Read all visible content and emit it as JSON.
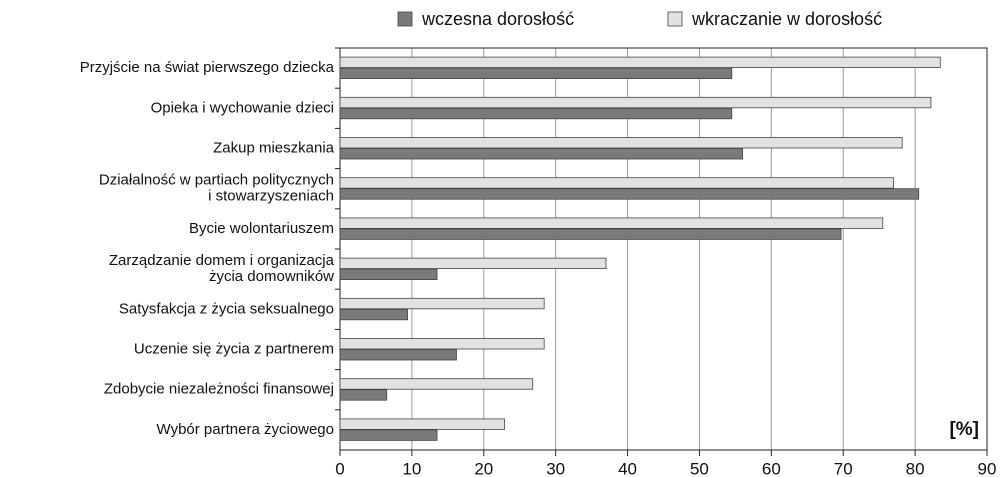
{
  "chart_data": {
    "type": "bar",
    "orientation": "horizontal",
    "categories": [
      [
        "Przyjście na świat pierwszego dziecka"
      ],
      [
        "Opieka i wychowanie dzieci"
      ],
      [
        "Zakup mieszkania"
      ],
      [
        "Działalność w partiach politycznych",
        "i stowarzyszeniach"
      ],
      [
        "Bycie wolontariuszem"
      ],
      [
        "Zarządzanie domem i organizacja",
        "życia domowników"
      ],
      [
        "Satysfakcja z życia seksualnego"
      ],
      [
        "Uczenie się życia z partnerem"
      ],
      [
        "Zdobycie niezależności finansowej"
      ],
      [
        "Wybór partnera życiowego"
      ]
    ],
    "series": [
      {
        "name": "wczesna dorosłość",
        "color": "#7a7a7a",
        "values": [
          54.5,
          54.5,
          56,
          80.5,
          69.7,
          13.5,
          9.4,
          16.2,
          6.5,
          13.5
        ]
      },
      {
        "name": "wkraczanie w dorosłość",
        "color": "#e2e2e2",
        "values": [
          83.5,
          82.2,
          78.2,
          77,
          75.5,
          37,
          28.4,
          28.4,
          26.8,
          22.9
        ]
      }
    ],
    "annotation": "[%]",
    "xlim": [
      0,
      90
    ],
    "xticks": [
      0,
      10,
      20,
      30,
      40,
      50,
      60,
      70,
      80,
      90
    ],
    "grid": true,
    "legend": "top"
  }
}
